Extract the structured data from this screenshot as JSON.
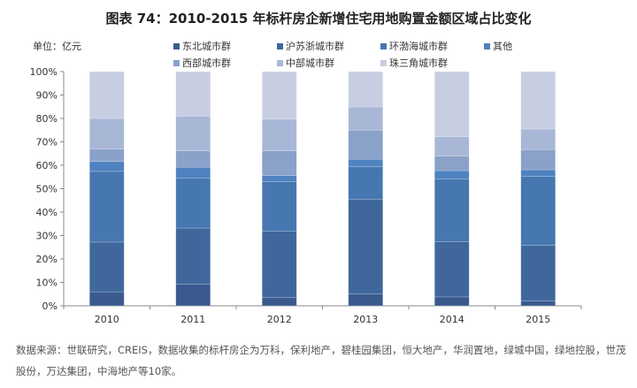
{
  "title": "图表 74：2010-2015 年标杆房企新增住宅用地购置金额区域占比变化",
  "unit": "单位：亿元",
  "footnote": "数据来源：世联研究，CREIS，数据收集的标杆房企为万科，保利地产，碧桂园集团，恒大地产，华润置地，绿城中国，绿地控股，世茂股份，万达集团，中海地产等10家。",
  "chart_data": {
    "type": "bar",
    "stacked": true,
    "percent": true,
    "title": "图表 74：2010-2015 年标杆房企新增住宅用地购置金额区域占比变化",
    "xlabel": "",
    "ylabel": "单位：亿元",
    "ylim": [
      0,
      100
    ],
    "yticks": [
      "0%",
      "10%",
      "20%",
      "30%",
      "40%",
      "50%",
      "60%",
      "70%",
      "80%",
      "90%",
      "100%"
    ],
    "categories": [
      "2010",
      "2011",
      "2012",
      "2013",
      "2014",
      "2015"
    ],
    "legend_position": "top",
    "series": [
      {
        "name": "东北城市群",
        "color": "#3a5a8e",
        "values": [
          6.0,
          9.3,
          3.5,
          5.0,
          3.8,
          2.0
        ]
      },
      {
        "name": "沪苏浙城市群",
        "color": "#3f679c",
        "values": [
          21.2,
          23.9,
          28.3,
          40.5,
          23.6,
          23.8
        ]
      },
      {
        "name": "环渤海城市群",
        "color": "#4677b0",
        "values": [
          30.2,
          21.3,
          21.3,
          13.9,
          26.8,
          29.4
        ]
      },
      {
        "name": "其他",
        "color": "#4f82c0",
        "values": [
          4.2,
          4.7,
          2.5,
          3.2,
          3.5,
          2.9
        ]
      },
      {
        "name": "西部城市群",
        "color": "#8aa1c9",
        "values": [
          5.3,
          7.0,
          10.6,
          12.4,
          6.2,
          8.6
        ]
      },
      {
        "name": "中部城市群",
        "color": "#a9b7d7",
        "values": [
          13.1,
          14.8,
          13.5,
          9.9,
          8.3,
          8.8
        ]
      },
      {
        "name": "珠三角城市群",
        "color": "#c8cee2",
        "values": [
          20.0,
          19.0,
          20.3,
          15.1,
          27.8,
          24.5
        ]
      }
    ]
  }
}
